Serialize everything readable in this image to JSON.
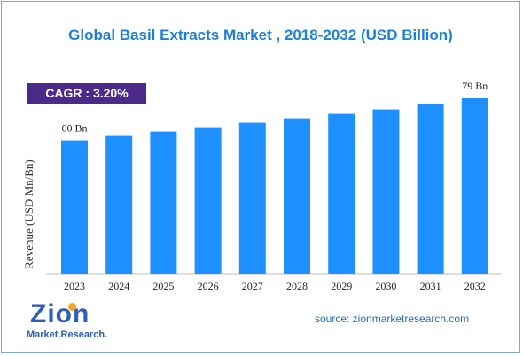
{
  "title": "Global Basil Extracts Market , 2018-2032 (USD Billion)",
  "cagr_label": "CAGR : 3.20%",
  "source": "source: zionmarketresearch.com",
  "logo": {
    "word": "Zion",
    "sub": "Market.Research."
  },
  "colors": {
    "bar": "#1e90ff",
    "title": "#1e7fd6",
    "cagr_bg": "#4b2a8a",
    "divider": "#f08a4a"
  },
  "chart_data": {
    "type": "bar",
    "categories": [
      "2023",
      "2024",
      "2025",
      "2026",
      "2027",
      "2028",
      "2029",
      "2030",
      "2031",
      "2032"
    ],
    "values": [
      60,
      62,
      64,
      66,
      68,
      70,
      72,
      74,
      76.5,
      79
    ],
    "data_labels": [
      {
        "index": 0,
        "text": "60 Bn"
      },
      {
        "index": 9,
        "text": "79 Bn"
      }
    ],
    "title": "Global Basil Extracts Market , 2018-2032 (USD Billion)",
    "xlabel": "",
    "ylabel": "Revenue (USD Mn/Bn)",
    "ylim": [
      0,
      85
    ],
    "grid": false,
    "legend": "none"
  }
}
